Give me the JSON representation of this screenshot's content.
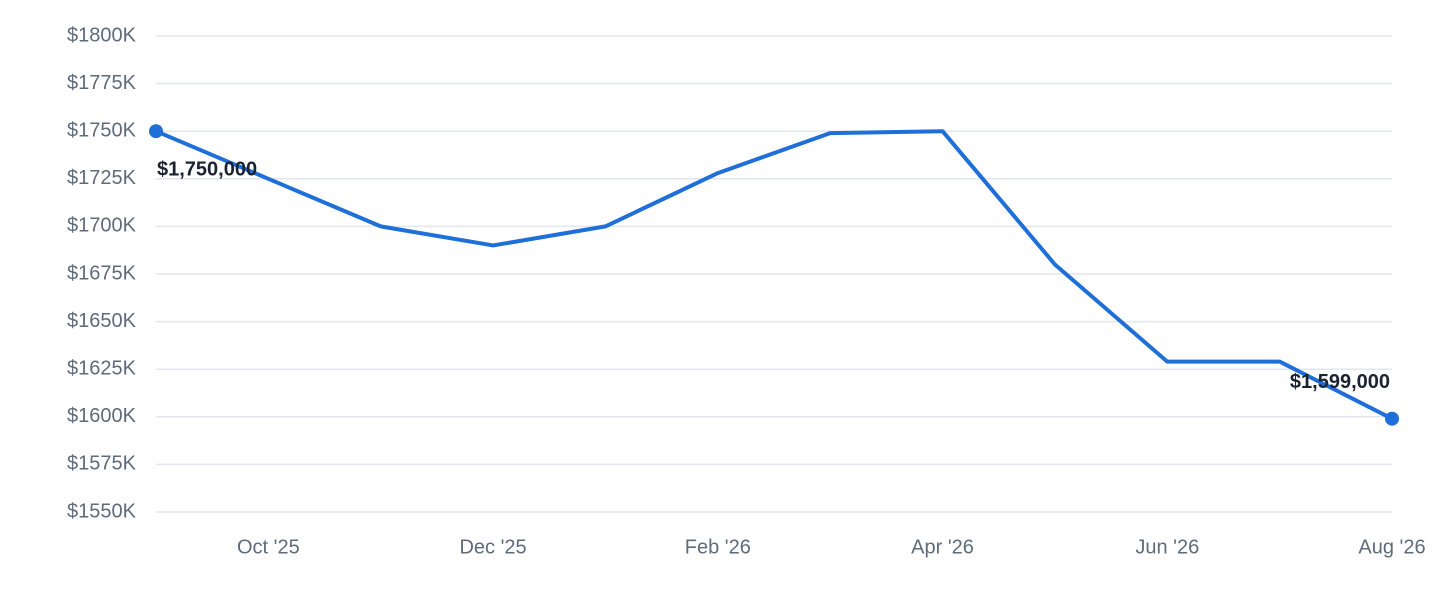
{
  "chart_data": {
    "type": "line",
    "categories": [
      null,
      "Oct '25",
      null,
      "Dec '25",
      null,
      "Feb '26",
      null,
      "Apr '26",
      null,
      "Jun '26",
      null,
      "Aug '26"
    ],
    "values": [
      1750,
      1725,
      1700,
      1690,
      1700,
      1728,
      1749,
      1750,
      1680,
      1629,
      1629,
      1599
    ],
    "value_labels": [
      "$1,750,000",
      null,
      null,
      null,
      null,
      null,
      null,
      null,
      null,
      null,
      null,
      "$1,599,000"
    ],
    "color": "#1f6fd8",
    "ylim": [
      1550,
      1800
    ],
    "yticks": [
      {
        "value": 1550,
        "label": "$1550K"
      },
      {
        "value": 1575,
        "label": "$1575K"
      },
      {
        "value": 1600,
        "label": "$1600K"
      },
      {
        "value": 1625,
        "label": "$1625K"
      },
      {
        "value": 1650,
        "label": "$1650K"
      },
      {
        "value": 1675,
        "label": "$1675K"
      },
      {
        "value": 1700,
        "label": "$1700K"
      },
      {
        "value": 1725,
        "label": "$1725K"
      },
      {
        "value": 1750,
        "label": "$1750K"
      },
      {
        "value": 1775,
        "label": "$1775K"
      },
      {
        "value": 1800,
        "label": "$1800K"
      }
    ],
    "grid": true
  }
}
